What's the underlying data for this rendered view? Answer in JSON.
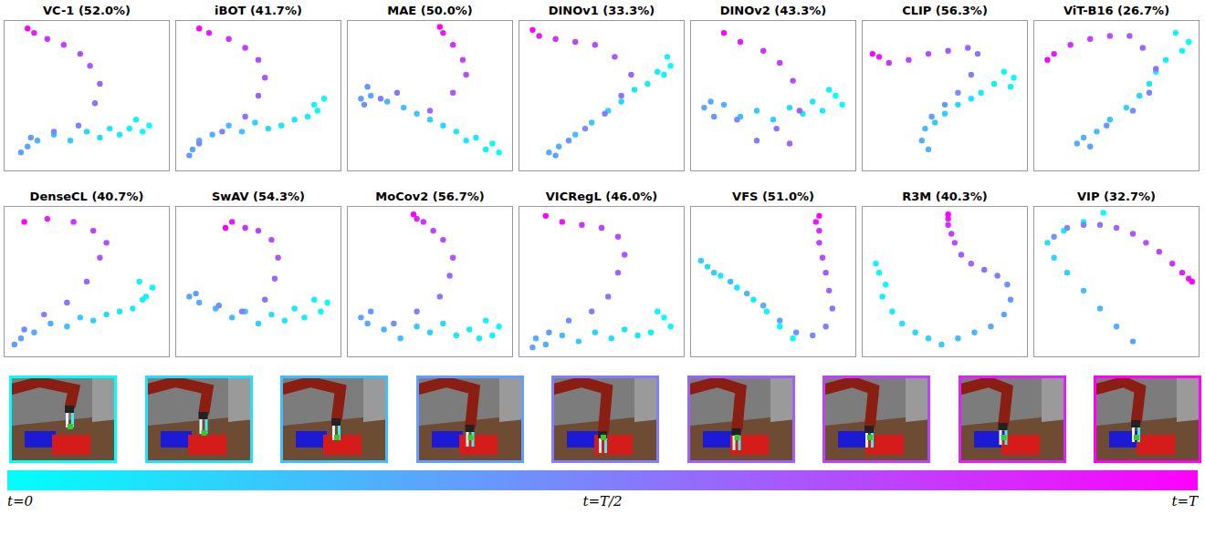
{
  "chart_data": [
    {
      "type": "scatter",
      "title": "VC-1 (52.0%)",
      "xlim": [
        0,
        100
      ],
      "ylim": [
        0,
        100
      ],
      "tick_labels": false,
      "x": [
        88,
        84,
        80,
        76,
        70,
        64,
        58,
        50,
        40,
        30,
        20,
        14,
        10,
        16,
        30,
        45,
        55,
        58,
        52,
        46,
        36,
        26,
        18,
        14
      ],
      "values": [
        30,
        26,
        34,
        28,
        24,
        28,
        22,
        26,
        20,
        24,
        20,
        16,
        12,
        22,
        26,
        30,
        45,
        58,
        70,
        78,
        84,
        88,
        92,
        95
      ],
      "t": [
        0,
        0.02,
        0.04,
        0.06,
        0.08,
        0.1,
        0.14,
        0.18,
        0.22,
        0.26,
        0.3,
        0.33,
        0.36,
        0.4,
        0.45,
        0.5,
        0.55,
        0.6,
        0.65,
        0.7,
        0.75,
        0.8,
        0.9,
        1
      ]
    },
    {
      "type": "scatter",
      "title": "iBOT (41.7%)",
      "xlim": [
        0,
        100
      ],
      "ylim": [
        0,
        100
      ],
      "tick_labels": false,
      "x": [
        90,
        86,
        84,
        80,
        72,
        64,
        56,
        48,
        40,
        32,
        22,
        14,
        10,
        8,
        14,
        28,
        42,
        50,
        54,
        50,
        42,
        32,
        20,
        14
      ],
      "values": [
        48,
        40,
        44,
        36,
        34,
        30,
        28,
        32,
        26,
        30,
        24,
        20,
        14,
        10,
        18,
        26,
        36,
        50,
        62,
        74,
        82,
        88,
        92,
        95
      ],
      "t": [
        0,
        0.02,
        0.04,
        0.06,
        0.08,
        0.1,
        0.14,
        0.18,
        0.22,
        0.26,
        0.3,
        0.33,
        0.36,
        0.4,
        0.45,
        0.5,
        0.55,
        0.6,
        0.65,
        0.7,
        0.75,
        0.8,
        0.9,
        1
      ]
    },
    {
      "type": "scatter",
      "title": "MAE (50.0%)",
      "xlim": [
        0,
        100
      ],
      "ylim": [
        0,
        100
      ],
      "tick_labels": false,
      "x": [
        92,
        88,
        84,
        78,
        72,
        66,
        58,
        50,
        42,
        34,
        24,
        14,
        8,
        12,
        10,
        20,
        30,
        50,
        64,
        72,
        70,
        64,
        58,
        56
      ],
      "values": [
        12,
        18,
        14,
        22,
        20,
        26,
        30,
        34,
        38,
        42,
        46,
        50,
        48,
        56,
        44,
        48,
        52,
        40,
        52,
        64,
        74,
        84,
        92,
        96
      ],
      "t": [
        0,
        0.02,
        0.04,
        0.06,
        0.08,
        0.1,
        0.14,
        0.18,
        0.22,
        0.26,
        0.3,
        0.33,
        0.36,
        0.4,
        0.45,
        0.5,
        0.55,
        0.6,
        0.65,
        0.7,
        0.75,
        0.8,
        0.9,
        1
      ]
    },
    {
      "type": "scatter",
      "title": "DINOv1 (33.3%)",
      "xlim": [
        0,
        100
      ],
      "ylim": [
        0,
        100
      ],
      "tick_labels": false,
      "x": [
        92,
        88,
        90,
        84,
        78,
        70,
        62,
        54,
        44,
        34,
        24,
        18,
        22,
        30,
        40,
        52,
        62,
        68,
        58,
        46,
        34,
        22,
        12,
        8
      ],
      "values": [
        70,
        64,
        76,
        66,
        58,
        54,
        46,
        40,
        32,
        24,
        16,
        12,
        10,
        20,
        28,
        38,
        50,
        64,
        76,
        84,
        86,
        88,
        90,
        94
      ],
      "t": [
        0,
        0.02,
        0.04,
        0.06,
        0.08,
        0.1,
        0.14,
        0.18,
        0.22,
        0.26,
        0.3,
        0.33,
        0.36,
        0.4,
        0.45,
        0.5,
        0.55,
        0.6,
        0.65,
        0.7,
        0.75,
        0.8,
        0.9,
        1
      ]
    },
    {
      "type": "scatter",
      "title": "DINOv2 (43.3%)",
      "xlim": [
        0,
        100
      ],
      "ylim": [
        0,
        100
      ],
      "tick_labels": false,
      "x": [
        88,
        92,
        84,
        80,
        74,
        68,
        60,
        50,
        40,
        30,
        20,
        12,
        8,
        14,
        28,
        40,
        52,
        60,
        66,
        62,
        54,
        44,
        30,
        20
      ],
      "values": [
        50,
        44,
        54,
        40,
        46,
        38,
        42,
        34,
        40,
        36,
        44,
        46,
        42,
        36,
        34,
        20,
        28,
        18,
        40,
        60,
        72,
        80,
        86,
        92
      ],
      "t": [
        0,
        0.02,
        0.04,
        0.06,
        0.08,
        0.1,
        0.14,
        0.18,
        0.22,
        0.26,
        0.3,
        0.33,
        0.36,
        0.4,
        0.45,
        0.5,
        0.55,
        0.6,
        0.65,
        0.7,
        0.75,
        0.8,
        0.9,
        1
      ]
    },
    {
      "type": "scatter",
      "title": "CLIP (56.3%)",
      "xlim": [
        0,
        100
      ],
      "ylim": [
        0,
        100
      ],
      "tick_labels": false,
      "x": [
        92,
        86,
        90,
        80,
        72,
        66,
        58,
        50,
        44,
        38,
        40,
        36,
        42,
        50,
        58,
        66,
        70,
        64,
        52,
        40,
        28,
        16,
        10,
        6
      ],
      "values": [
        62,
        66,
        56,
        58,
        52,
        48,
        44,
        38,
        32,
        28,
        14,
        20,
        36,
        44,
        52,
        64,
        78,
        82,
        80,
        78,
        74,
        72,
        76,
        78
      ],
      "t": [
        0,
        0.02,
        0.04,
        0.06,
        0.08,
        0.1,
        0.14,
        0.18,
        0.22,
        0.26,
        0.3,
        0.33,
        0.36,
        0.4,
        0.45,
        0.5,
        0.55,
        0.6,
        0.65,
        0.7,
        0.75,
        0.8,
        0.9,
        1
      ]
    },
    {
      "type": "scatter",
      "title": "ViT-B16 (26.7%)",
      "xlim": [
        0,
        100
      ],
      "ylim": [
        0,
        100
      ],
      "tick_labels": false,
      "x": [
        94,
        90,
        86,
        80,
        74,
        70,
        64,
        56,
        46,
        38,
        30,
        26,
        34,
        44,
        60,
        70,
        74,
        66,
        58,
        46,
        34,
        22,
        12,
        8
      ],
      "values": [
        86,
        80,
        92,
        74,
        66,
        58,
        50,
        42,
        34,
        26,
        22,
        18,
        16,
        30,
        40,
        52,
        68,
        82,
        90,
        90,
        88,
        84,
        78,
        74
      ],
      "t": [
        0,
        0.02,
        0.04,
        0.06,
        0.08,
        0.1,
        0.14,
        0.18,
        0.22,
        0.26,
        0.3,
        0.33,
        0.36,
        0.4,
        0.45,
        0.5,
        0.55,
        0.6,
        0.65,
        0.7,
        0.75,
        0.8,
        0.9,
        1
      ]
    },
    {
      "type": "scatter",
      "title": "DenseCL (40.7%)",
      "xlim": [
        0,
        100
      ],
      "ylim": [
        0,
        100
      ],
      "tick_labels": false,
      "x": [
        90,
        86,
        82,
        84,
        78,
        70,
        62,
        54,
        46,
        38,
        28,
        18,
        10,
        6,
        12,
        24,
        38,
        50,
        58,
        62,
        54,
        42,
        26,
        12
      ],
      "values": [
        46,
        40,
        50,
        38,
        32,
        30,
        28,
        24,
        26,
        20,
        22,
        16,
        12,
        8,
        18,
        28,
        36,
        50,
        66,
        76,
        84,
        90,
        92,
        90
      ],
      "t": [
        0,
        0.02,
        0.04,
        0.06,
        0.08,
        0.1,
        0.14,
        0.18,
        0.22,
        0.26,
        0.3,
        0.33,
        0.36,
        0.4,
        0.45,
        0.5,
        0.55,
        0.6,
        0.65,
        0.7,
        0.75,
        0.8,
        0.9,
        1
      ]
    },
    {
      "type": "scatter",
      "title": "SwAV (54.3%)",
      "xlim": [
        0,
        100
      ],
      "ylim": [
        0,
        100
      ],
      "tick_labels": false,
      "x": [
        92,
        88,
        84,
        78,
        72,
        66,
        58,
        50,
        42,
        34,
        24,
        14,
        8,
        12,
        26,
        40,
        54,
        60,
        62,
        58,
        50,
        42,
        34,
        30
      ],
      "values": [
        36,
        30,
        38,
        26,
        32,
        24,
        28,
        22,
        30,
        26,
        32,
        36,
        40,
        42,
        34,
        30,
        38,
        52,
        66,
        78,
        84,
        86,
        90,
        86
      ],
      "t": [
        0,
        0.02,
        0.04,
        0.06,
        0.08,
        0.1,
        0.14,
        0.18,
        0.22,
        0.26,
        0.3,
        0.33,
        0.36,
        0.4,
        0.45,
        0.5,
        0.55,
        0.6,
        0.65,
        0.7,
        0.75,
        0.8,
        0.9,
        1
      ]
    },
    {
      "type": "scatter",
      "title": "MoCov2 (56.7%)",
      "xlim": [
        0,
        100
      ],
      "ylim": [
        0,
        100
      ],
      "tick_labels": false,
      "x": [
        92,
        88,
        84,
        80,
        74,
        66,
        58,
        50,
        42,
        32,
        22,
        12,
        8,
        14,
        28,
        42,
        56,
        62,
        64,
        58,
        52,
        46,
        42,
        40
      ],
      "values": [
        20,
        14,
        24,
        12,
        18,
        14,
        22,
        16,
        20,
        12,
        18,
        22,
        26,
        30,
        22,
        30,
        40,
        54,
        66,
        78,
        84,
        90,
        92,
        95
      ],
      "t": [
        0,
        0.02,
        0.04,
        0.06,
        0.08,
        0.1,
        0.14,
        0.18,
        0.22,
        0.26,
        0.3,
        0.33,
        0.36,
        0.4,
        0.45,
        0.5,
        0.55,
        0.6,
        0.65,
        0.7,
        0.75,
        0.8,
        0.9,
        1
      ]
    },
    {
      "type": "scatter",
      "title": "VICRegL (46.0%)",
      "xlim": [
        0,
        100
      ],
      "ylim": [
        0,
        100
      ],
      "tick_labels": false,
      "x": [
        88,
        92,
        84,
        80,
        72,
        64,
        56,
        46,
        36,
        26,
        16,
        10,
        8,
        18,
        30,
        44,
        54,
        60,
        64,
        60,
        50,
        38,
        26,
        16
      ],
      "values": [
        26,
        20,
        30,
        16,
        14,
        18,
        12,
        16,
        10,
        14,
        8,
        12,
        6,
        16,
        24,
        30,
        40,
        56,
        68,
        80,
        86,
        88,
        90,
        94
      ],
      "t": [
        0,
        0.02,
        0.04,
        0.06,
        0.08,
        0.1,
        0.14,
        0.18,
        0.22,
        0.26,
        0.3,
        0.33,
        0.36,
        0.4,
        0.45,
        0.5,
        0.55,
        0.6,
        0.65,
        0.7,
        0.75,
        0.8,
        0.9,
        1
      ]
    },
    {
      "type": "scatter",
      "title": "VFS (51.0%)",
      "xlim": [
        0,
        100
      ],
      "ylim": [
        0,
        100
      ],
      "tick_labels": false,
      "x": [
        62,
        54,
        46,
        38,
        28,
        18,
        10,
        6,
        14,
        24,
        34,
        44,
        54,
        64,
        74,
        82,
        86,
        84,
        82,
        80,
        78,
        78,
        76,
        78
      ],
      "values": [
        12,
        20,
        30,
        38,
        46,
        54,
        60,
        64,
        56,
        50,
        42,
        34,
        24,
        16,
        14,
        20,
        32,
        44,
        56,
        66,
        76,
        84,
        90,
        94
      ],
      "t": [
        0,
        0.02,
        0.04,
        0.06,
        0.08,
        0.1,
        0.14,
        0.18,
        0.22,
        0.26,
        0.3,
        0.33,
        0.36,
        0.4,
        0.45,
        0.5,
        0.55,
        0.6,
        0.65,
        0.7,
        0.75,
        0.8,
        0.9,
        1
      ]
    },
    {
      "type": "scatter",
      "title": "R3M (40.3%)",
      "xlim": [
        0,
        100
      ],
      "ylim": [
        0,
        100
      ],
      "tick_labels": false,
      "x": [
        14,
        10,
        8,
        12,
        18,
        24,
        32,
        40,
        48,
        58,
        68,
        78,
        86,
        90,
        88,
        82,
        74,
        66,
        60,
        56,
        54,
        52,
        52,
        52
      ],
      "values": [
        48,
        56,
        62,
        40,
        30,
        22,
        16,
        12,
        8,
        12,
        16,
        20,
        28,
        38,
        48,
        54,
        58,
        62,
        68,
        76,
        82,
        88,
        92,
        95
      ],
      "t": [
        0,
        0.02,
        0.04,
        0.06,
        0.08,
        0.1,
        0.14,
        0.18,
        0.22,
        0.26,
        0.3,
        0.33,
        0.36,
        0.4,
        0.45,
        0.5,
        0.55,
        0.6,
        0.65,
        0.7,
        0.75,
        0.8,
        0.9,
        1
      ]
    },
    {
      "type": "scatter",
      "title": "VIP (32.7%)",
      "xlim": [
        0,
        100
      ],
      "ylim": [
        0,
        100
      ],
      "tick_labels": false,
      "x": [
        42,
        30,
        18,
        8,
        12,
        20,
        30,
        40,
        50,
        60,
        12,
        20,
        30,
        40,
        50,
        60,
        68,
        76,
        84,
        90,
        94,
        96
      ],
      "values": [
        96,
        90,
        84,
        76,
        66,
        56,
        44,
        32,
        20,
        10,
        80,
        86,
        88,
        88,
        86,
        82,
        76,
        70,
        62,
        56,
        52,
        50
      ],
      "t": [
        0,
        0.04,
        0.08,
        0.12,
        0.16,
        0.2,
        0.24,
        0.28,
        0.32,
        0.36,
        0.4,
        0.45,
        0.5,
        0.55,
        0.6,
        0.65,
        0.7,
        0.75,
        0.8,
        0.85,
        0.92,
        1
      ]
    }
  ],
  "frames": {
    "t": [
      0,
      0.125,
      0.25,
      0.375,
      0.5,
      0.625,
      0.75,
      0.875,
      1
    ]
  },
  "colorbar": {
    "range": [
      0,
      1
    ],
    "ticks": [
      {
        "value": 0,
        "label": "t=0"
      },
      {
        "value": 0.5,
        "label": "t=T/2"
      },
      {
        "value": 1,
        "label": "t=T"
      }
    ]
  }
}
